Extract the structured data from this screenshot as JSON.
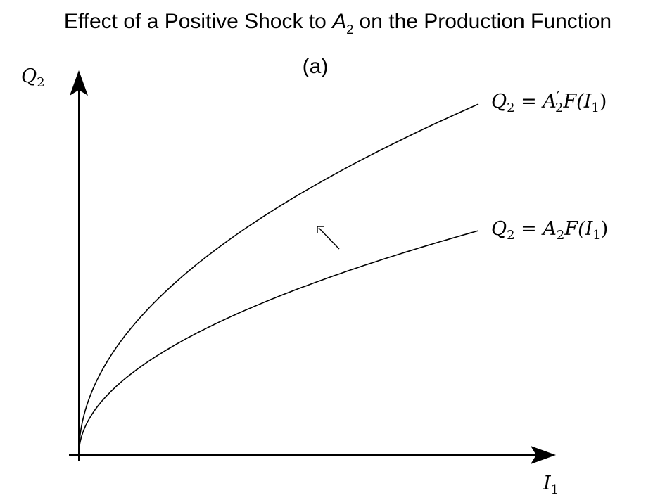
{
  "title": {
    "prefix": "Effect of a Positive Shock to ",
    "var": "A",
    "sub": "2",
    "suffix": " on the Production Function"
  },
  "panel_label": "(a)",
  "y_axis": {
    "var": "Q",
    "sub": "2"
  },
  "x_axis": {
    "var": "I",
    "sub": "1"
  },
  "curves": [
    {
      "lhs": "Q",
      "lhs_sub": "2",
      "eq": " = ",
      "coef": "A",
      "prime": "′",
      "coef_sub": "2",
      "fn": "F(",
      "arg": "I",
      "arg_sub": "1",
      "close": ")"
    },
    {
      "lhs": "Q",
      "lhs_sub": "2",
      "eq": " = ",
      "coef": "A",
      "coef_sub": "2",
      "fn": "F(",
      "arg": "I",
      "arg_sub": "1",
      "close": ")"
    }
  ],
  "shift_arrow": {
    "direction": "up-left"
  },
  "colors": {
    "ink": "#000000",
    "background": "#ffffff"
  }
}
